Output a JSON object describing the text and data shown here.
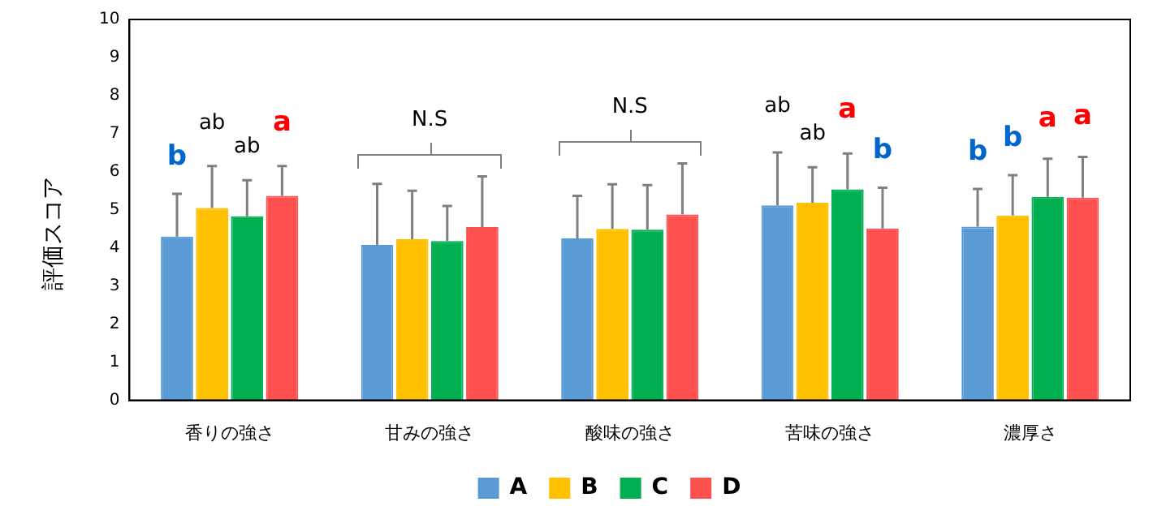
{
  "chart_data": {
    "type": "bar",
    "ylabel": "評価スコア",
    "categories": [
      "香りの強さ",
      "甘みの強さ",
      "酸味の強さ",
      "苦味の強さ",
      "濃厚さ"
    ],
    "series": [
      {
        "name": "A",
        "color": "#5b9bd5",
        "values": [
          4.3,
          4.08,
          4.25,
          5.12,
          4.56
        ],
        "errors": [
          [
            4.3,
            5.42
          ],
          [
            4.08,
            5.68
          ],
          [
            4.25,
            5.37
          ],
          [
            5.12,
            6.51
          ],
          [
            4.56,
            5.55
          ]
        ]
      },
      {
        "name": "B",
        "color": "#ffc000",
        "values": [
          5.05,
          4.23,
          4.5,
          5.19,
          4.85
        ],
        "errors": [
          [
            5.05,
            6.15
          ],
          [
            4.23,
            5.5
          ],
          [
            4.5,
            5.67
          ],
          [
            5.19,
            6.12
          ],
          [
            4.85,
            5.91
          ]
        ]
      },
      {
        "name": "C",
        "color": "#00b050",
        "values": [
          4.83,
          4.18,
          4.48,
          5.54,
          5.34
        ],
        "errors": [
          [
            4.83,
            5.78
          ],
          [
            4.18,
            5.1
          ],
          [
            4.48,
            5.65
          ],
          [
            5.54,
            6.48
          ],
          [
            5.34,
            6.34
          ]
        ]
      },
      {
        "name": "D",
        "color": "#ff5050",
        "values": [
          5.37,
          4.55,
          4.88,
          4.51,
          5.32
        ],
        "errors": [
          [
            5.37,
            6.15
          ],
          [
            4.55,
            5.88
          ],
          [
            4.88,
            6.22
          ],
          [
            4.51,
            5.58
          ],
          [
            5.32,
            6.39
          ]
        ]
      }
    ],
    "ylim": [
      0,
      10
    ],
    "yticks": [
      0,
      1,
      2,
      3,
      4,
      5,
      6,
      7,
      8,
      9,
      10
    ],
    "legend": "bottom",
    "annotations": [
      "b",
      "ab",
      "ab",
      "a",
      "N.S",
      "N.S",
      "ab",
      "ab",
      "a",
      "b",
      "b",
      "b",
      "a",
      "a"
    ]
  }
}
